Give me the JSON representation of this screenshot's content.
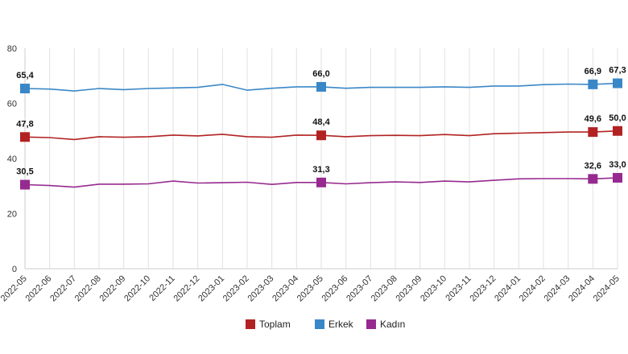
{
  "chart_data": {
    "type": "line",
    "title": "",
    "xlabel": "",
    "ylabel": "",
    "ylim": [
      0,
      80
    ],
    "yticks": [
      "0",
      "20",
      "40",
      "60",
      "80"
    ],
    "grid": "vertical",
    "legend_position": "bottom",
    "x": [
      "2022-05",
      "2022-06",
      "2022-07",
      "2022-08",
      "2022-09",
      "2022-10",
      "2022-11",
      "2022-12",
      "2023-01",
      "2023-02",
      "2023-03",
      "2023-04",
      "2023-05",
      "2023-06",
      "2023-07",
      "2023-08",
      "2023-09",
      "2023-10",
      "2023-11",
      "2023-12",
      "2024-01",
      "2024-02",
      "2024-03",
      "2024-04",
      "2024-05"
    ],
    "series": [
      {
        "name": "Toplam",
        "color": "#b22222",
        "values": [
          47.8,
          47.6,
          46.9,
          47.9,
          47.7,
          47.9,
          48.5,
          48.2,
          48.8,
          47.9,
          47.7,
          48.5,
          48.4,
          47.9,
          48.3,
          48.4,
          48.3,
          48.7,
          48.3,
          49.0,
          49.2,
          49.4,
          49.6,
          49.6,
          50.0
        ],
        "labeled_indices": [
          0,
          12,
          23,
          24
        ],
        "labels": [
          "47,8",
          "48,4",
          "49,6",
          "50,0"
        ]
      },
      {
        "name": "Erkek",
        "color": "#3a87c8",
        "values": [
          65.4,
          65.2,
          64.5,
          65.4,
          65.0,
          65.4,
          65.6,
          65.8,
          66.9,
          64.8,
          65.5,
          66.0,
          66.0,
          65.5,
          65.8,
          65.8,
          65.8,
          66.0,
          65.8,
          66.3,
          66.3,
          66.8,
          67.0,
          66.9,
          67.3
        ],
        "labeled_indices": [
          0,
          12,
          23,
          24
        ],
        "labels": [
          "65,4",
          "66,0",
          "66,9",
          "67,3"
        ]
      },
      {
        "name": "Kadın",
        "color": "#962a8f",
        "values": [
          30.5,
          30.2,
          29.6,
          30.7,
          30.7,
          30.8,
          31.8,
          31.1,
          31.2,
          31.4,
          30.6,
          31.3,
          31.3,
          30.8,
          31.2,
          31.5,
          31.3,
          31.8,
          31.5,
          32.1,
          32.6,
          32.7,
          32.7,
          32.6,
          33.0
        ],
        "labeled_indices": [
          0,
          12,
          23,
          24
        ],
        "labels": [
          "30,5",
          "31,3",
          "32,6",
          "33,0"
        ]
      }
    ]
  }
}
